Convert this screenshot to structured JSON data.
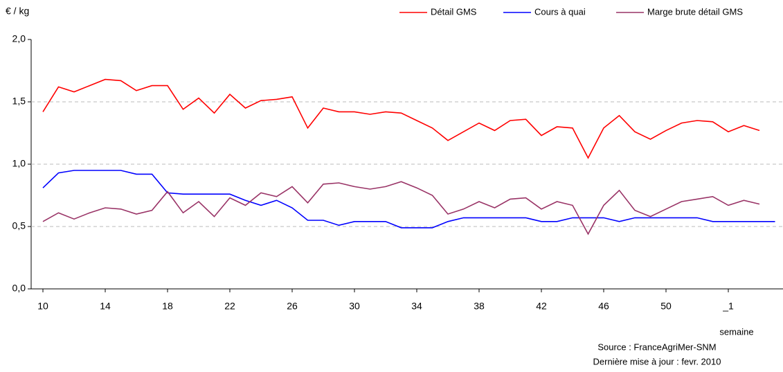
{
  "chart_data": {
    "type": "line",
    "y_label": "€ / kg",
    "x_label": "semaine",
    "source": "Source : FranceAgriMer-SNM",
    "update": "Dernière mise à jour : fevr. 2010",
    "categories": [
      "10",
      null,
      null,
      null,
      "14",
      null,
      null,
      null,
      "18",
      null,
      null,
      null,
      "22",
      null,
      null,
      null,
      "26",
      null,
      null,
      null,
      "30",
      null,
      null,
      null,
      "34",
      null,
      null,
      null,
      "38",
      null,
      null,
      null,
      "42",
      null,
      null,
      null,
      "46",
      null,
      null,
      null,
      "50",
      null,
      null,
      null,
      "_1",
      null,
      null,
      null
    ],
    "ylim": [
      0,
      2
    ],
    "yticks": [
      {
        "value": 0,
        "label": "0,0"
      },
      {
        "value": 0.5,
        "label": "0,5"
      },
      {
        "value": 1,
        "label": "1,0"
      },
      {
        "value": 1.5,
        "label": "1,5"
      },
      {
        "value": 2,
        "label": "2,0"
      }
    ],
    "grid": true,
    "legend": "top-right",
    "series": [
      {
        "name": "Détail GMS",
        "color": "#ff0000",
        "values": [
          1.42,
          1.62,
          1.58,
          1.63,
          1.68,
          1.67,
          1.59,
          1.63,
          1.63,
          1.44,
          1.53,
          1.41,
          1.56,
          1.45,
          1.51,
          1.52,
          1.54,
          1.29,
          1.45,
          1.42,
          1.42,
          1.4,
          1.42,
          1.41,
          1.35,
          1.29,
          1.19,
          1.26,
          1.33,
          1.27,
          1.35,
          1.36,
          1.23,
          1.3,
          1.29,
          1.05,
          1.29,
          1.39,
          1.26,
          1.2,
          1.27,
          1.33,
          1.35,
          1.34,
          1.26,
          1.31,
          1.27,
          null
        ]
      },
      {
        "name": "Cours à quai",
        "color": "#0000ff",
        "values": [
          0.81,
          0.93,
          0.95,
          0.95,
          0.95,
          0.95,
          0.92,
          0.92,
          0.77,
          0.76,
          0.76,
          0.76,
          0.76,
          0.71,
          0.67,
          0.71,
          0.65,
          0.55,
          0.55,
          0.51,
          0.54,
          0.54,
          0.54,
          0.49,
          0.49,
          0.49,
          0.54,
          0.57,
          0.57,
          0.57,
          0.57,
          0.57,
          0.54,
          0.54,
          0.57,
          0.57,
          0.57,
          0.54,
          0.57,
          0.57,
          0.57,
          0.57,
          0.57,
          0.54,
          0.54,
          0.54,
          0.54,
          0.54
        ]
      },
      {
        "name": "Marge brute détail GMS",
        "color": "#993366",
        "values": [
          0.54,
          0.61,
          0.56,
          0.61,
          0.65,
          0.64,
          0.6,
          0.63,
          0.78,
          0.61,
          0.7,
          0.58,
          0.73,
          0.67,
          0.77,
          0.74,
          0.82,
          0.69,
          0.84,
          0.85,
          0.82,
          0.8,
          0.82,
          0.86,
          0.81,
          0.75,
          0.6,
          0.64,
          0.7,
          0.65,
          0.72,
          0.73,
          0.64,
          0.7,
          0.67,
          0.44,
          0.67,
          0.79,
          0.63,
          0.58,
          0.64,
          0.7,
          0.72,
          0.74,
          0.67,
          0.71,
          0.68,
          null
        ]
      }
    ]
  }
}
